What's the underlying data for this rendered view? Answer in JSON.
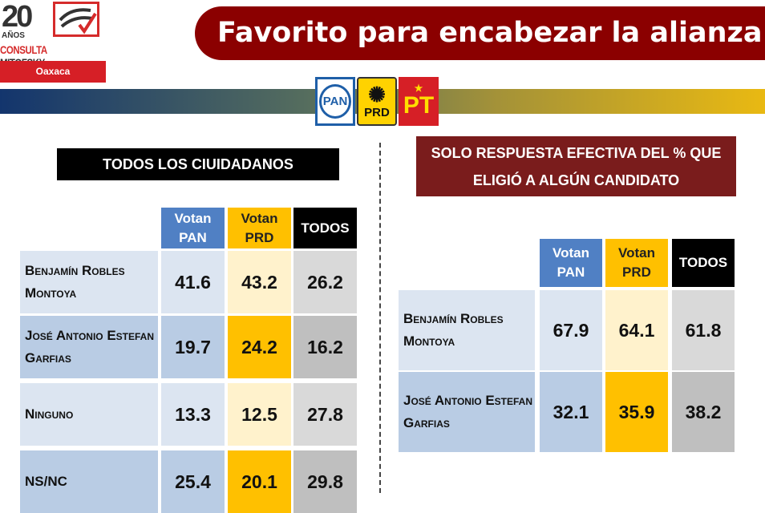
{
  "logo": {
    "number": "20",
    "years": "AÑOS",
    "brand_a": "CONSULTA",
    "brand_b": "MITOFSKY",
    "region": "Oaxaca"
  },
  "title": "Favorito para encabezar la alianza",
  "parties": [
    "PAN",
    "PRD",
    "PT"
  ],
  "colors": {
    "pan": "#5080c4",
    "prd": "#ffc000",
    "todos": "#000000",
    "banner": "#8b0000"
  },
  "left": {
    "heading": "TODOS LOS CIUIDADANOS",
    "columns": [
      "Votan PAN",
      "Votan PRD",
      "TODOS"
    ],
    "rows": [
      {
        "label": "Benjamín Robles Montoya",
        "values": [
          "41.6",
          "43.2",
          "26.2"
        ]
      },
      {
        "label": "José Antonio Estefan Garfias",
        "values": [
          "19.7",
          "24.2",
          "16.2"
        ]
      },
      {
        "label": "Ninguno",
        "values": [
          "13.3",
          "12.5",
          "27.8"
        ]
      },
      {
        "label": "NS/NC",
        "values": [
          "25.4",
          "20.1",
          "29.8"
        ]
      }
    ]
  },
  "right": {
    "heading": "SOLO  RESPUESTA EFECTIVA DEL % QUE ELIGIÓ A ALGÚN CANDIDATO",
    "columns": [
      "Votan PAN",
      "Votan PRD",
      "TODOS"
    ],
    "rows": [
      {
        "label": "Benjamín Robles Montoya",
        "values": [
          "67.9",
          "64.1",
          "61.8"
        ]
      },
      {
        "label": "José Antonio Estefan Garfias",
        "values": [
          "32.1",
          "35.9",
          "38.2"
        ]
      }
    ]
  }
}
